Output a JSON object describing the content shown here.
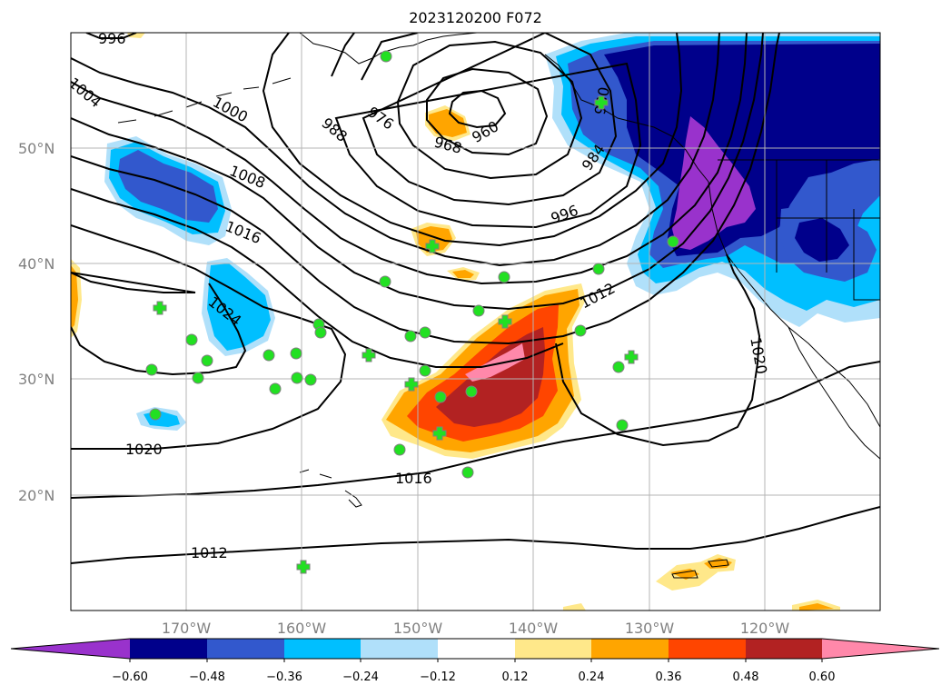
{
  "title": "2023120200 F072",
  "latitude_labels": [
    "50°N",
    "40°N",
    "30°N",
    "20°N"
  ],
  "longitude_labels": [
    "170°W",
    "160°W",
    "150°W",
    "140°W",
    "130°W",
    "120°W"
  ],
  "isobar_labels": [
    "996",
    "1004",
    "1000",
    "988",
    "976",
    "968",
    "960",
    "980",
    "984",
    "1008",
    "996",
    "1016",
    "1024",
    "1012",
    "1020",
    "1020",
    "1016",
    "1012"
  ],
  "colorbar": {
    "colors": [
      "#9932cc",
      "#00008b",
      "#3258cd",
      "#00bfff",
      "#b0e0fa",
      "#ffffff",
      "#ffe88a",
      "#ffa500",
      "#ff4500",
      "#b22222",
      "#ff88aa"
    ],
    "ticks": [
      "−0.60",
      "−0.48",
      "−0.36",
      "−0.24",
      "−0.12",
      "0.12",
      "0.24",
      "0.36",
      "0.48",
      "0.60"
    ]
  },
  "colors": {
    "marker_green": "#22e022",
    "marker_gray": "#808080",
    "contour": "#000000",
    "grid": "#b4b4b4"
  }
}
